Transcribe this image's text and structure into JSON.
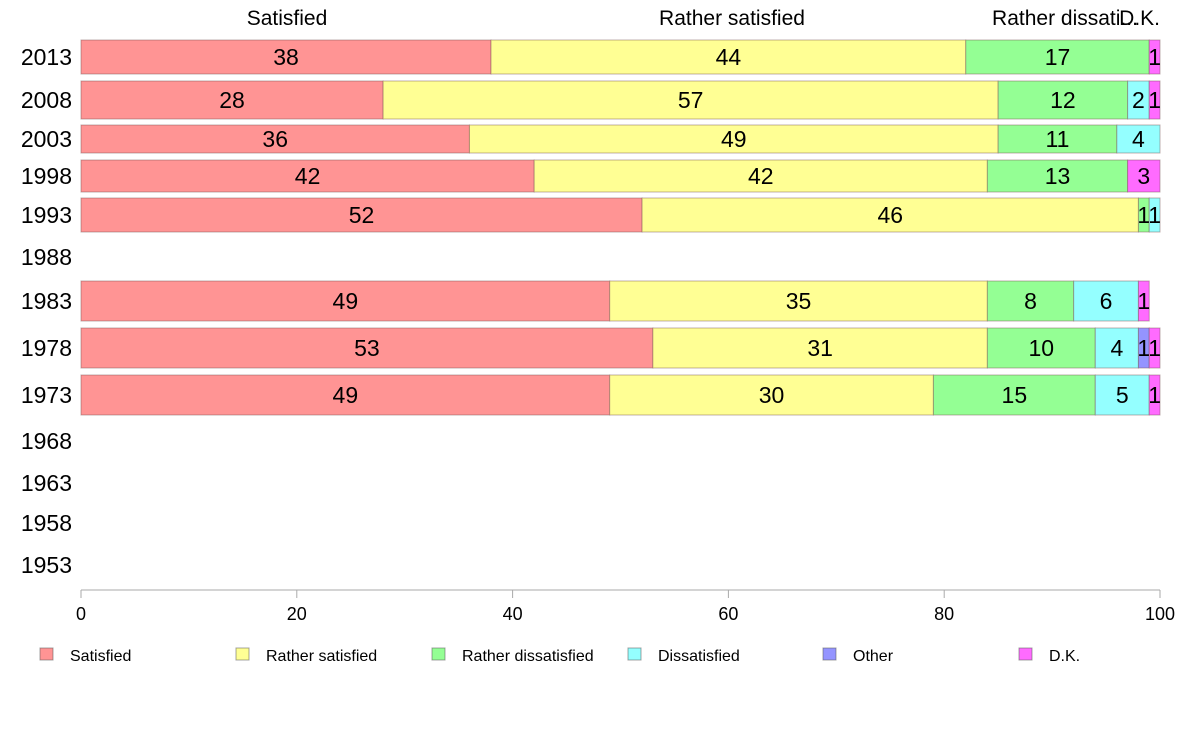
{
  "chart_data": {
    "type": "bar",
    "orientation": "horizontal",
    "stacked": true,
    "categories": [
      "2013",
      "2008",
      "2003",
      "1998",
      "1993",
      "1988",
      "1983",
      "1978",
      "1973",
      "1968",
      "1963",
      "1958",
      "1953"
    ],
    "series": [
      {
        "name": "Satisfied",
        "color": "#ff9494",
        "values": [
          38,
          28,
          36,
          42,
          52,
          null,
          49,
          53,
          49,
          null,
          null,
          null,
          null
        ],
        "labels": [
          "38",
          "28",
          "36",
          "42",
          "52",
          "",
          "49",
          "53",
          "49",
          "",
          "",
          "",
          ""
        ]
      },
      {
        "name": "Rather satisfied",
        "color": "#ffff94",
        "values": [
          44,
          57,
          49,
          42,
          46,
          null,
          35,
          31,
          30,
          null,
          null,
          null,
          null
        ],
        "labels": [
          "44",
          "57",
          "49",
          "42",
          "46",
          "",
          "35",
          "31",
          "30",
          "",
          "",
          "",
          ""
        ]
      },
      {
        "name": "Rather dissatisfied",
        "color": "#94ff94",
        "values": [
          17,
          12,
          11,
          13,
          1,
          null,
          8,
          10,
          15,
          null,
          null,
          null,
          null
        ],
        "labels": [
          "17",
          "12",
          "11",
          "13",
          "1",
          "",
          "8",
          "10",
          "15",
          "",
          "",
          "",
          ""
        ]
      },
      {
        "name": "Dissatisfied",
        "color": "#94ffff",
        "values": [
          0,
          2,
          4,
          0,
          1,
          null,
          6,
          4,
          5,
          null,
          null,
          null,
          null
        ],
        "labels": [
          "",
          "2",
          "4",
          "",
          "1",
          "",
          "6",
          "4",
          "5",
          "",
          "",
          "",
          ""
        ]
      },
      {
        "name": "Other",
        "color": "#9494ff",
        "values": [
          0,
          0,
          0,
          0,
          0,
          null,
          0,
          1,
          0,
          null,
          null,
          null,
          null
        ],
        "labels": [
          "",
          "",
          "",
          "",
          "",
          "",
          "",
          "1",
          "",
          "",
          "",
          "",
          ""
        ]
      },
      {
        "name": "D.K.",
        "color": "#ff6bff",
        "values": [
          1,
          1,
          0,
          3,
          0,
          null,
          1,
          1,
          1,
          null,
          null,
          null,
          null
        ],
        "labels": [
          "1",
          "1",
          "",
          "3",
          "",
          "",
          "1",
          "1",
          "1",
          "",
          "",
          "",
          ""
        ]
      }
    ],
    "top_labels": [
      "Satisfied",
      "Rather satisfied",
      "Rather dissati...",
      "D.K."
    ],
    "xlim": [
      0,
      100
    ],
    "x_ticks": [
      "0",
      "20",
      "40",
      "60",
      "80",
      "100"
    ],
    "grid": false,
    "legend_position": "bottom"
  }
}
